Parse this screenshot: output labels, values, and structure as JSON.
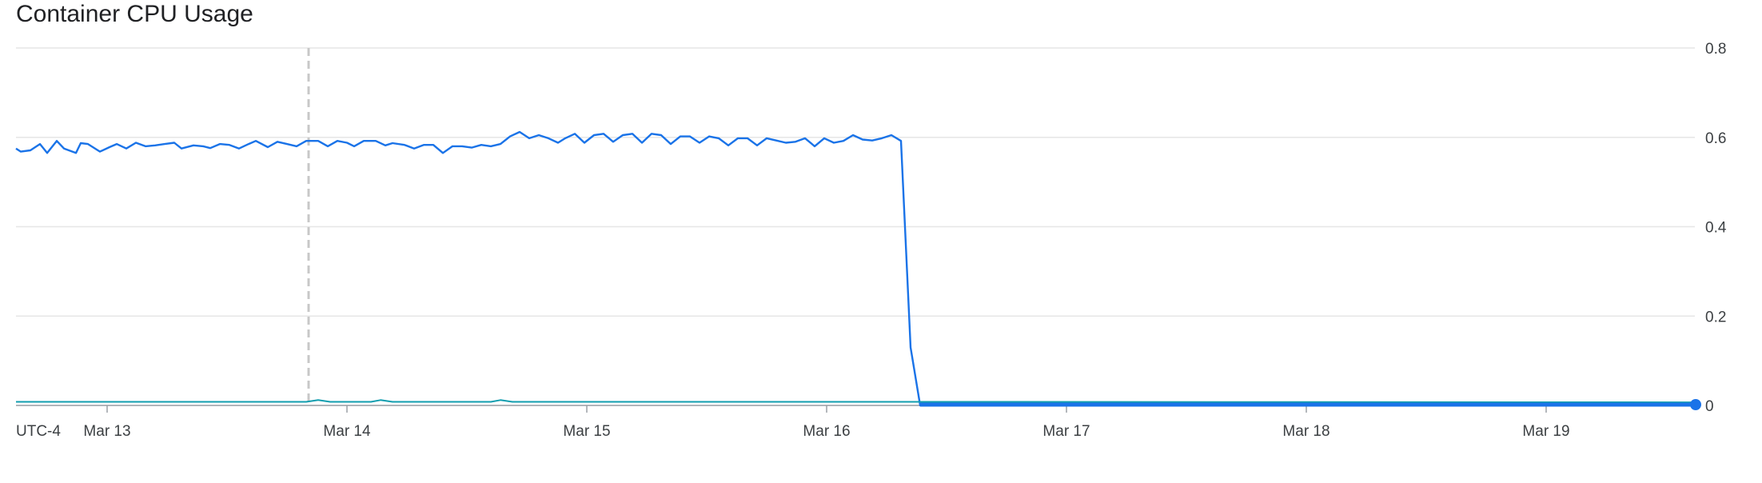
{
  "chart_data": {
    "type": "line",
    "title": "Container CPU Usage",
    "xlabel": "",
    "ylabel": "",
    "timezone_label": "UTC-4",
    "x_tick_labels": [
      "Mar 13",
      "Mar 14",
      "Mar 15",
      "Mar 16",
      "Mar 17",
      "Mar 18",
      "Mar 19"
    ],
    "y_tick_labels": [
      "0",
      "0.2",
      "0.4",
      "0.6",
      "0.8"
    ],
    "ylim": [
      0,
      0.8
    ],
    "xlim_days": [
      12.62,
      19.62
    ],
    "grid": true,
    "marker_line_x_day": 13.84,
    "colors": {
      "series_a": "#1a73e8",
      "series_b": "#129eaf",
      "marker_line": "#c8c8c8",
      "end_dot": "#1a73e8"
    },
    "series": [
      {
        "color": "#1a73e8",
        "x_days": [
          12.62,
          12.64,
          12.68,
          12.72,
          12.75,
          12.79,
          12.82,
          12.87,
          12.89,
          12.92,
          12.97,
          13.01,
          13.04,
          13.08,
          13.12,
          13.16,
          13.2,
          13.24,
          13.28,
          13.31,
          13.36,
          13.4,
          13.43,
          13.47,
          13.51,
          13.55,
          13.59,
          13.62,
          13.67,
          13.71,
          13.75,
          13.79,
          13.83,
          13.88,
          13.92,
          13.96,
          14.0,
          14.03,
          14.07,
          14.12,
          14.16,
          14.19,
          14.24,
          14.28,
          14.32,
          14.36,
          14.4,
          14.44,
          14.48,
          14.52,
          14.56,
          14.6,
          14.64,
          14.68,
          14.72,
          14.76,
          14.8,
          14.84,
          14.88,
          14.91,
          14.95,
          14.99,
          15.03,
          15.07,
          15.11,
          15.15,
          15.19,
          15.23,
          15.27,
          15.31,
          15.35,
          15.39,
          15.43,
          15.47,
          15.51,
          15.55,
          15.59,
          15.63,
          15.67,
          15.71,
          15.75,
          15.79,
          15.83,
          15.87,
          15.91,
          15.95,
          15.99,
          16.03,
          16.07,
          16.11,
          16.15,
          16.19,
          16.23,
          16.27,
          16.31,
          16.35,
          16.39,
          16.43,
          16.47,
          16.51,
          16.55,
          16.58,
          16.63,
          19.62
        ],
        "y": [
          0.575,
          0.568,
          0.571,
          0.585,
          0.565,
          0.592,
          0.575,
          0.565,
          0.587,
          0.585,
          0.568,
          0.578,
          0.585,
          0.575,
          0.588,
          0.58,
          0.582,
          0.585,
          0.588,
          0.575,
          0.582,
          0.58,
          0.576,
          0.585,
          0.583,
          0.575,
          0.585,
          0.592,
          0.578,
          0.59,
          0.585,
          0.58,
          0.592,
          0.592,
          0.58,
          0.592,
          0.588,
          0.58,
          0.592,
          0.592,
          0.582,
          0.587,
          0.583,
          0.575,
          0.583,
          0.583,
          0.565,
          0.58,
          0.58,
          0.577,
          0.583,
          0.58,
          0.585,
          0.602,
          0.612,
          0.598,
          0.605,
          0.598,
          0.588,
          0.598,
          0.608,
          0.588,
          0.605,
          0.608,
          0.59,
          0.605,
          0.608,
          0.588,
          0.608,
          0.605,
          0.585,
          0.602,
          0.602,
          0.588,
          0.602,
          0.598,
          0.582,
          0.598,
          0.598,
          0.582,
          0.598,
          0.593,
          0.588,
          0.59,
          0.598,
          0.58,
          0.598,
          0.588,
          0.592,
          0.605,
          0.595,
          0.593,
          0.598,
          0.605,
          0.592,
          0.13,
          0.0,
          0.0,
          0.0,
          0.0,
          0.0,
          0.0,
          0.0,
          0.0
        ]
      },
      {
        "color": "#129eaf",
        "x_days": [
          12.62,
          13.83,
          13.88,
          13.93,
          14.1,
          14.14,
          14.19,
          14.6,
          14.64,
          14.69,
          16.55,
          19.62
        ],
        "y": [
          0.008,
          0.008,
          0.012,
          0.008,
          0.008,
          0.012,
          0.008,
          0.008,
          0.012,
          0.008,
          0.008,
          0.007
        ]
      }
    ]
  }
}
